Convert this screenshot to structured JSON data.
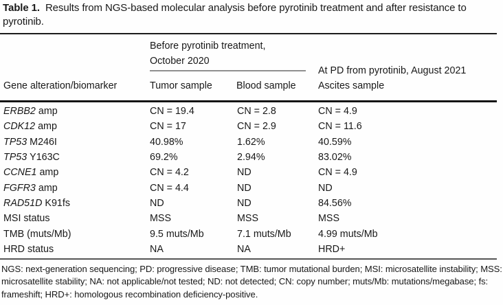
{
  "title": {
    "label": "Table 1.",
    "text": "Results from NGS-based molecular analysis before pyrotinib treatment and after resistance to pyrotinib."
  },
  "header": {
    "group_before": "Before pyrotinib treatment, October 2020",
    "group_pd": "At PD from pyrotinib, August 2021",
    "columns": [
      "Gene alteration/biomarker",
      "Tumor sample",
      "Blood sample",
      "Ascites sample"
    ]
  },
  "table": {
    "rows": [
      {
        "gene": "ERBB2",
        "alteration": "amp",
        "tumor": "CN = 19.4",
        "blood": "CN = 2.8",
        "ascites": "CN = 4.9"
      },
      {
        "gene": "CDK12",
        "alteration": "amp",
        "tumor": "CN = 17",
        "blood": "CN = 2.9",
        "ascites": "CN = 11.6"
      },
      {
        "gene": "TP53",
        "alteration": "M246I",
        "tumor": "40.98%",
        "blood": "1.62%",
        "ascites": "40.59%"
      },
      {
        "gene": "TP53",
        "alteration": "Y163C",
        "tumor": "69.2%",
        "blood": "2.94%",
        "ascites": "83.02%"
      },
      {
        "gene": "CCNE1",
        "alteration": "amp",
        "tumor": "CN = 4.2",
        "blood": "ND",
        "ascites": "CN = 4.9"
      },
      {
        "gene": "FGFR3",
        "alteration": "amp",
        "tumor": "CN = 4.4",
        "blood": "ND",
        "ascites": "ND"
      },
      {
        "gene": "RAD51D",
        "alteration": "K91fs",
        "tumor": "ND",
        "blood": "ND",
        "ascites": "84.56%"
      },
      {
        "gene": "",
        "alteration": "MSI status",
        "tumor": "MSS",
        "blood": "MSS",
        "ascites": "MSS"
      },
      {
        "gene": "",
        "alteration": "TMB (muts/Mb)",
        "tumor": "9.5 muts/Mb",
        "blood": "7.1 muts/Mb",
        "ascites": "4.99 muts/Mb"
      },
      {
        "gene": "",
        "alteration": "HRD status",
        "tumor": "NA",
        "blood": "NA",
        "ascites": "HRD+"
      }
    ]
  },
  "footnote": "NGS: next-generation sequencing; PD: progressive disease; TMB: tumor mutational burden; MSI: microsatellite instability; MSS: microsatellite stability; NA: not applicable/not tested; ND: not detected; CN: copy number; muts/Mb: mutations/megabase; fs: frameshift; HRD+: homologous recombination deficiency-positive.",
  "colors": {
    "background": "#fefefe",
    "text": "#181818",
    "rule_dark": "#1c1c1c",
    "rule_gray": "#8f8f8f",
    "rule_bottom": "#555555"
  }
}
